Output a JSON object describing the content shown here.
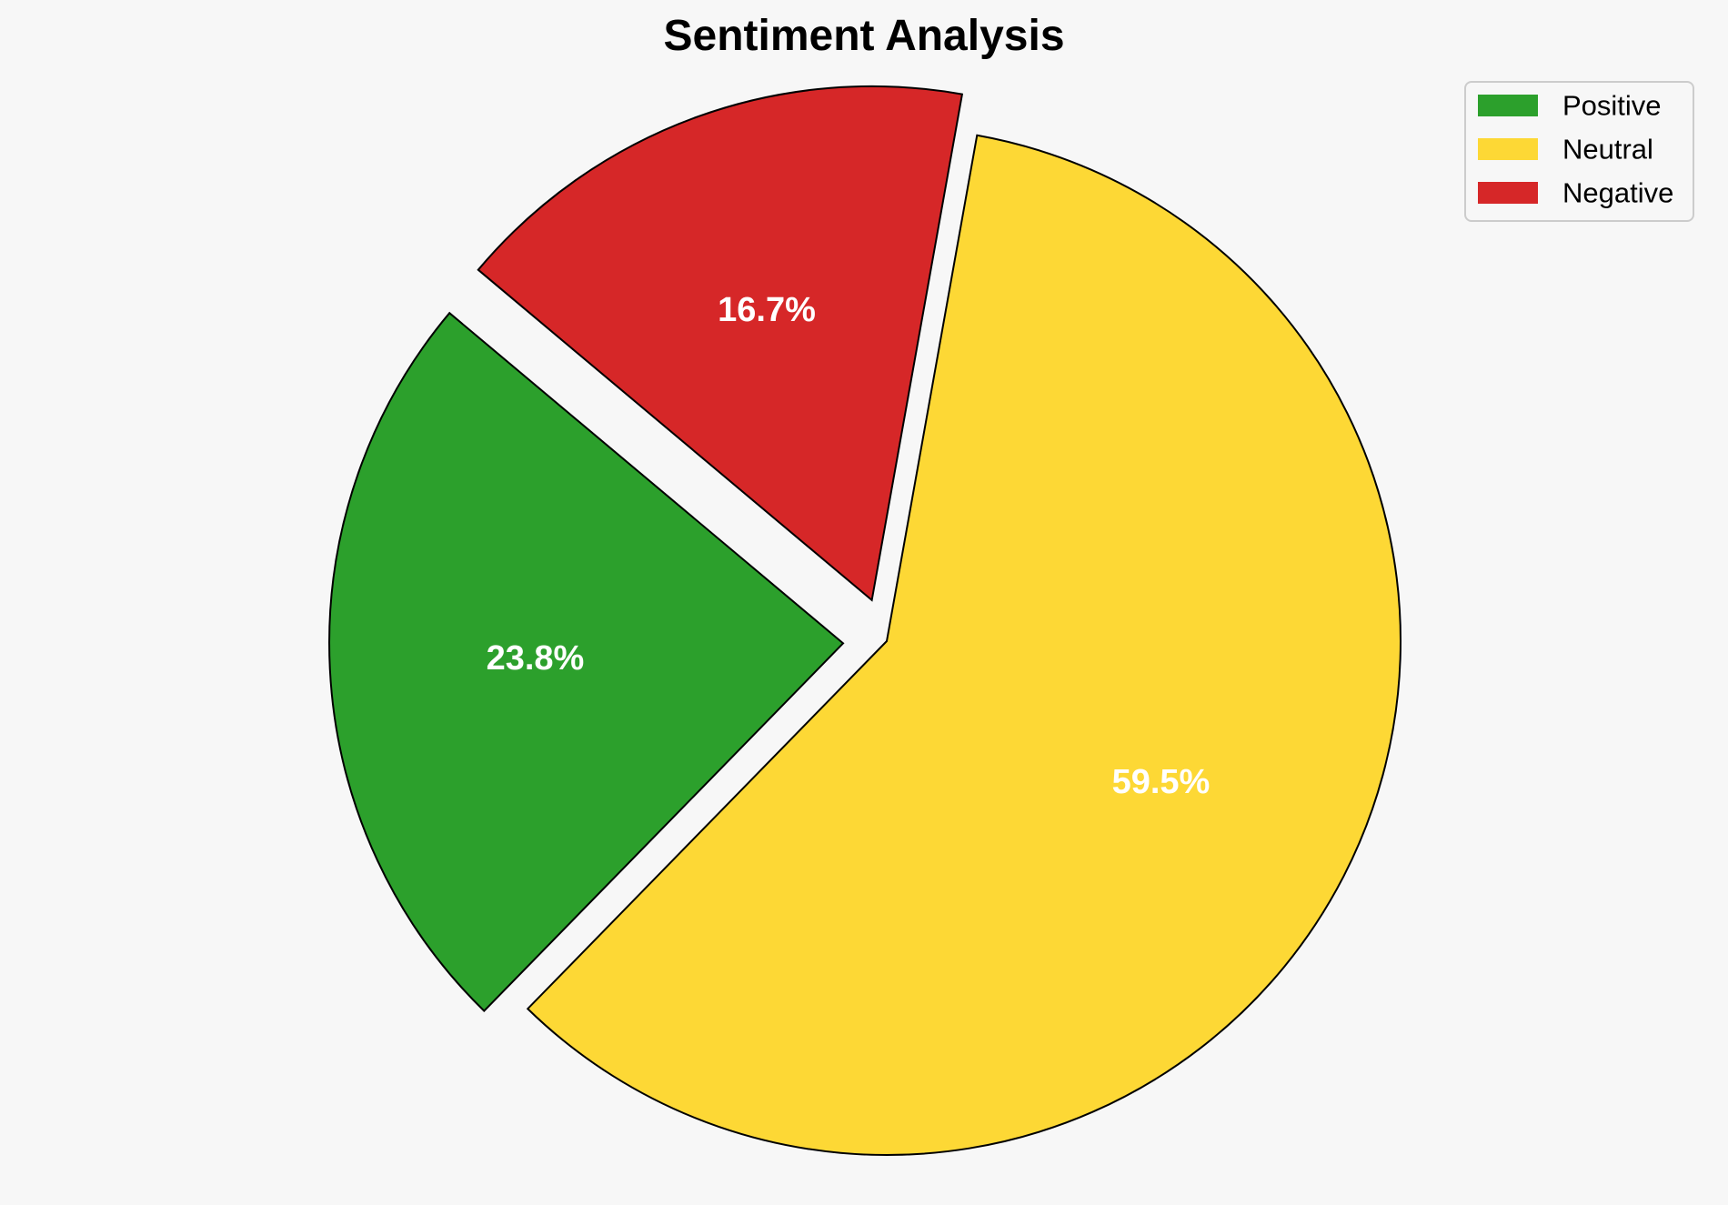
{
  "chart_data": {
    "type": "pie",
    "title": "Sentiment Analysis",
    "categories": [
      "Positive",
      "Neutral",
      "Negative"
    ],
    "values": [
      23.8,
      59.5,
      16.7
    ],
    "value_labels": [
      "23.8%",
      "59.5%",
      "16.7%"
    ],
    "colors": [
      "#2ca02c",
      "#fdd835",
      "#d62728"
    ],
    "exploded": [
      true,
      false,
      true
    ],
    "legend_position": "top-right",
    "start_angle_deg": 140,
    "direction": "counterclockwise"
  }
}
